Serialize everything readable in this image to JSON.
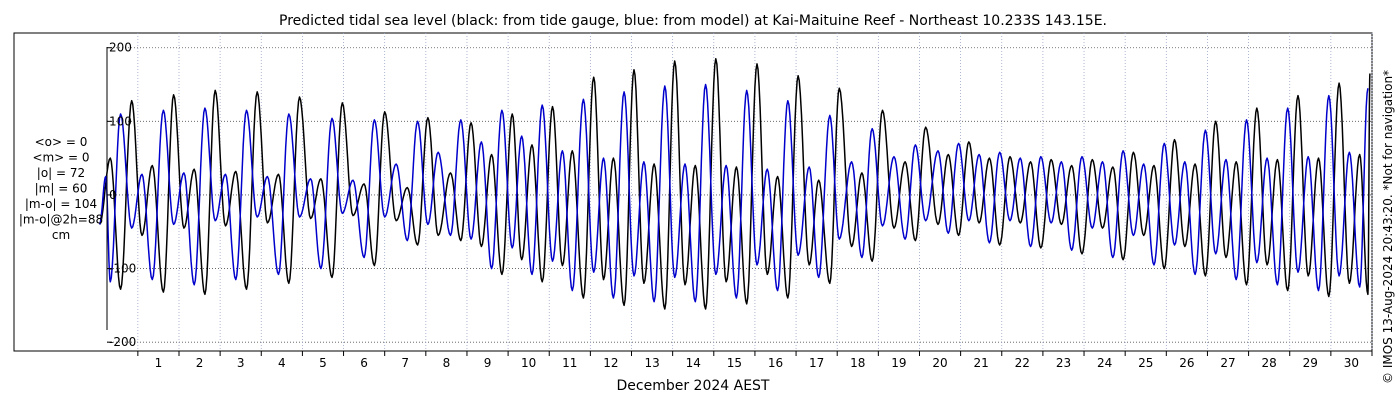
{
  "chart_data": {
    "type": "line",
    "title": "Predicted tidal sea level (black: from tide gauge, blue: from model) at Kai-Maituine Reef - Northeast 10.233S 143.15E.",
    "xlabel": "December 2024 AEST",
    "ylabel": "",
    "y_ticks": [
      "200",
      "100",
      "0",
      "-100",
      "-200"
    ],
    "y_tick_values": [
      200,
      100,
      0,
      -100,
      -200
    ],
    "ylim": [
      -212,
      220
    ],
    "xlim": [
      0.25,
      31
    ],
    "x_ticks": [
      "1",
      "2",
      "3",
      "4",
      "5",
      "6",
      "7",
      "8",
      "9",
      "10",
      "11",
      "12",
      "13",
      "14",
      "15",
      "16",
      "17",
      "18",
      "19",
      "20",
      "21",
      "22",
      "23",
      "24",
      "25",
      "26",
      "27",
      "28",
      "29",
      "30"
    ],
    "grid": true,
    "stats": [
      "<o> = 0",
      "<m> = 0",
      "|o| = 72",
      "|m| = 60",
      "|m-o| = 104",
      "|m-o|@2h=88",
      "cm"
    ],
    "copyright": "© IMOS 13-Aug-2024 20:43:20. *Not for navigation*",
    "series": [
      {
        "color": "#000000",
        "highs": [
          [
            0.33,
            50
          ],
          [
            0.85,
            128
          ],
          [
            1.35,
            40
          ],
          [
            1.87,
            136
          ],
          [
            2.37,
            35
          ],
          [
            2.88,
            142
          ],
          [
            3.38,
            32
          ],
          [
            3.9,
            140
          ],
          [
            4.42,
            28
          ],
          [
            4.93,
            133
          ],
          [
            5.45,
            22
          ],
          [
            5.97,
            125
          ],
          [
            6.5,
            15
          ],
          [
            7.0,
            113
          ],
          [
            7.55,
            10
          ],
          [
            8.05,
            105
          ],
          [
            8.6,
            30
          ],
          [
            9.1,
            98
          ],
          [
            9.6,
            55
          ],
          [
            10.1,
            110
          ],
          [
            10.58,
            68
          ],
          [
            11.08,
            120
          ],
          [
            11.56,
            60
          ],
          [
            12.08,
            160
          ],
          [
            12.56,
            50
          ],
          [
            13.06,
            170
          ],
          [
            13.55,
            42
          ],
          [
            14.05,
            182
          ],
          [
            14.55,
            40
          ],
          [
            15.05,
            185
          ],
          [
            15.55,
            38
          ],
          [
            16.05,
            178
          ],
          [
            16.55,
            25
          ],
          [
            17.05,
            162
          ],
          [
            17.55,
            20
          ],
          [
            18.05,
            145
          ],
          [
            18.6,
            30
          ],
          [
            19.1,
            115
          ],
          [
            19.65,
            45
          ],
          [
            20.15,
            92
          ],
          [
            20.7,
            55
          ],
          [
            21.2,
            72
          ],
          [
            21.7,
            50
          ],
          [
            22.2,
            52
          ],
          [
            22.7,
            45
          ],
          [
            23.2,
            48
          ],
          [
            23.7,
            40
          ],
          [
            24.2,
            48
          ],
          [
            24.7,
            38
          ],
          [
            25.2,
            58
          ],
          [
            25.7,
            40
          ],
          [
            26.2,
            75
          ],
          [
            26.7,
            42
          ],
          [
            27.2,
            100
          ],
          [
            27.7,
            45
          ],
          [
            28.2,
            118
          ],
          [
            28.7,
            48
          ],
          [
            29.2,
            135
          ],
          [
            29.7,
            50
          ],
          [
            30.2,
            152
          ],
          [
            30.7,
            55
          ],
          [
            30.95,
            165
          ]
        ],
        "lows": [
          [
            0.07,
            -40
          ],
          [
            0.58,
            -128
          ],
          [
            1.1,
            -55
          ],
          [
            1.62,
            -132
          ],
          [
            2.12,
            -45
          ],
          [
            2.63,
            -135
          ],
          [
            3.13,
            -42
          ],
          [
            3.64,
            -128
          ],
          [
            4.15,
            -38
          ],
          [
            4.67,
            -120
          ],
          [
            5.2,
            -32
          ],
          [
            5.72,
            -112
          ],
          [
            6.23,
            -28
          ],
          [
            6.75,
            -96
          ],
          [
            7.28,
            -35
          ],
          [
            7.8,
            -68
          ],
          [
            8.3,
            -55
          ],
          [
            8.85,
            -62
          ],
          [
            9.35,
            -70
          ],
          [
            9.85,
            -108
          ],
          [
            10.33,
            -88
          ],
          [
            10.83,
            -118
          ],
          [
            11.32,
            -96
          ],
          [
            11.83,
            -140
          ],
          [
            12.32,
            -115
          ],
          [
            12.82,
            -150
          ],
          [
            13.3,
            -120
          ],
          [
            13.81,
            -155
          ],
          [
            14.3,
            -122
          ],
          [
            14.8,
            -155
          ],
          [
            15.3,
            -118
          ],
          [
            15.8,
            -148
          ],
          [
            16.3,
            -108
          ],
          [
            16.8,
            -140
          ],
          [
            17.32,
            -95
          ],
          [
            17.82,
            -120
          ],
          [
            18.35,
            -70
          ],
          [
            18.85,
            -90
          ],
          [
            19.38,
            -45
          ],
          [
            19.9,
            -62
          ],
          [
            20.45,
            -40
          ],
          [
            20.95,
            -55
          ],
          [
            21.45,
            -38
          ],
          [
            21.95,
            -68
          ],
          [
            22.45,
            -38
          ],
          [
            22.95,
            -72
          ],
          [
            23.45,
            -40
          ],
          [
            23.95,
            -80
          ],
          [
            24.45,
            -45
          ],
          [
            24.95,
            -88
          ],
          [
            25.45,
            -55
          ],
          [
            25.95,
            -100
          ],
          [
            26.45,
            -70
          ],
          [
            26.95,
            -110
          ],
          [
            27.45,
            -85
          ],
          [
            27.95,
            -122
          ],
          [
            28.45,
            -95
          ],
          [
            28.95,
            -130
          ],
          [
            29.45,
            -110
          ],
          [
            29.95,
            -138
          ],
          [
            30.45,
            -120
          ],
          [
            30.9,
            -135
          ]
        ]
      },
      {
        "color": "#0000cc",
        "highs": [
          [
            0.22,
            25
          ],
          [
            0.58,
            110
          ],
          [
            1.1,
            28
          ],
          [
            1.62,
            115
          ],
          [
            2.12,
            30
          ],
          [
            2.63,
            118
          ],
          [
            3.13,
            28
          ],
          [
            3.64,
            115
          ],
          [
            4.15,
            25
          ],
          [
            4.67,
            110
          ],
          [
            5.2,
            22
          ],
          [
            5.72,
            104
          ],
          [
            6.23,
            20
          ],
          [
            6.75,
            102
          ],
          [
            7.28,
            42
          ],
          [
            7.8,
            100
          ],
          [
            8.3,
            58
          ],
          [
            8.85,
            102
          ],
          [
            9.35,
            72
          ],
          [
            9.85,
            115
          ],
          [
            10.33,
            80
          ],
          [
            10.83,
            122
          ],
          [
            11.32,
            60
          ],
          [
            11.83,
            130
          ],
          [
            12.32,
            50
          ],
          [
            12.82,
            140
          ],
          [
            13.3,
            45
          ],
          [
            13.81,
            148
          ],
          [
            14.3,
            42
          ],
          [
            14.8,
            150
          ],
          [
            15.3,
            40
          ],
          [
            15.8,
            142
          ],
          [
            16.3,
            35
          ],
          [
            16.8,
            128
          ],
          [
            17.32,
            38
          ],
          [
            17.82,
            108
          ],
          [
            18.35,
            45
          ],
          [
            18.85,
            90
          ],
          [
            19.38,
            52
          ],
          [
            19.9,
            68
          ],
          [
            20.45,
            60
          ],
          [
            20.95,
            70
          ],
          [
            21.45,
            55
          ],
          [
            21.95,
            58
          ],
          [
            22.45,
            50
          ],
          [
            22.95,
            52
          ],
          [
            23.45,
            45
          ],
          [
            23.95,
            52
          ],
          [
            24.45,
            45
          ],
          [
            24.95,
            60
          ],
          [
            25.45,
            42
          ],
          [
            25.95,
            70
          ],
          [
            26.45,
            45
          ],
          [
            26.95,
            88
          ],
          [
            27.45,
            48
          ],
          [
            27.95,
            102
          ],
          [
            28.45,
            50
          ],
          [
            28.95,
            118
          ],
          [
            29.45,
            52
          ],
          [
            29.95,
            135
          ],
          [
            30.45,
            58
          ],
          [
            30.9,
            145
          ]
        ],
        "lows": [
          [
            0.07,
            -40
          ],
          [
            0.33,
            -118
          ],
          [
            0.85,
            -45
          ],
          [
            1.35,
            -115
          ],
          [
            1.87,
            -40
          ],
          [
            2.37,
            -122
          ],
          [
            2.88,
            -35
          ],
          [
            3.38,
            -115
          ],
          [
            3.9,
            -30
          ],
          [
            4.42,
            -108
          ],
          [
            4.93,
            -30
          ],
          [
            5.45,
            -100
          ],
          [
            5.97,
            -25
          ],
          [
            6.5,
            -85
          ],
          [
            7.0,
            -30
          ],
          [
            7.55,
            -62
          ],
          [
            8.05,
            -40
          ],
          [
            8.6,
            -55
          ],
          [
            9.1,
            -60
          ],
          [
            9.6,
            -100
          ],
          [
            10.1,
            -72
          ],
          [
            10.58,
            -108
          ],
          [
            11.08,
            -90
          ],
          [
            11.56,
            -130
          ],
          [
            12.08,
            -105
          ],
          [
            12.56,
            -140
          ],
          [
            13.06,
            -110
          ],
          [
            13.55,
            -145
          ],
          [
            14.05,
            -112
          ],
          [
            14.55,
            -145
          ],
          [
            15.05,
            -108
          ],
          [
            15.55,
            -140
          ],
          [
            16.05,
            -95
          ],
          [
            16.55,
            -130
          ],
          [
            17.05,
            -82
          ],
          [
            17.55,
            -112
          ],
          [
            18.05,
            -60
          ],
          [
            18.6,
            -85
          ],
          [
            19.1,
            -42
          ],
          [
            19.65,
            -60
          ],
          [
            20.15,
            -35
          ],
          [
            20.7,
            -52
          ],
          [
            21.2,
            -35
          ],
          [
            21.7,
            -65
          ],
          [
            22.2,
            -35
          ],
          [
            22.7,
            -70
          ],
          [
            23.2,
            -38
          ],
          [
            23.7,
            -75
          ],
          [
            24.2,
            -45
          ],
          [
            24.7,
            -85
          ],
          [
            25.2,
            -55
          ],
          [
            25.7,
            -95
          ],
          [
            26.2,
            -68
          ],
          [
            26.7,
            -108
          ],
          [
            27.2,
            -80
          ],
          [
            27.7,
            -115
          ],
          [
            28.2,
            -92
          ],
          [
            28.7,
            -122
          ],
          [
            29.2,
            -105
          ],
          [
            29.7,
            -130
          ],
          [
            30.2,
            -110
          ],
          [
            30.7,
            -125
          ]
        ]
      }
    ]
  }
}
